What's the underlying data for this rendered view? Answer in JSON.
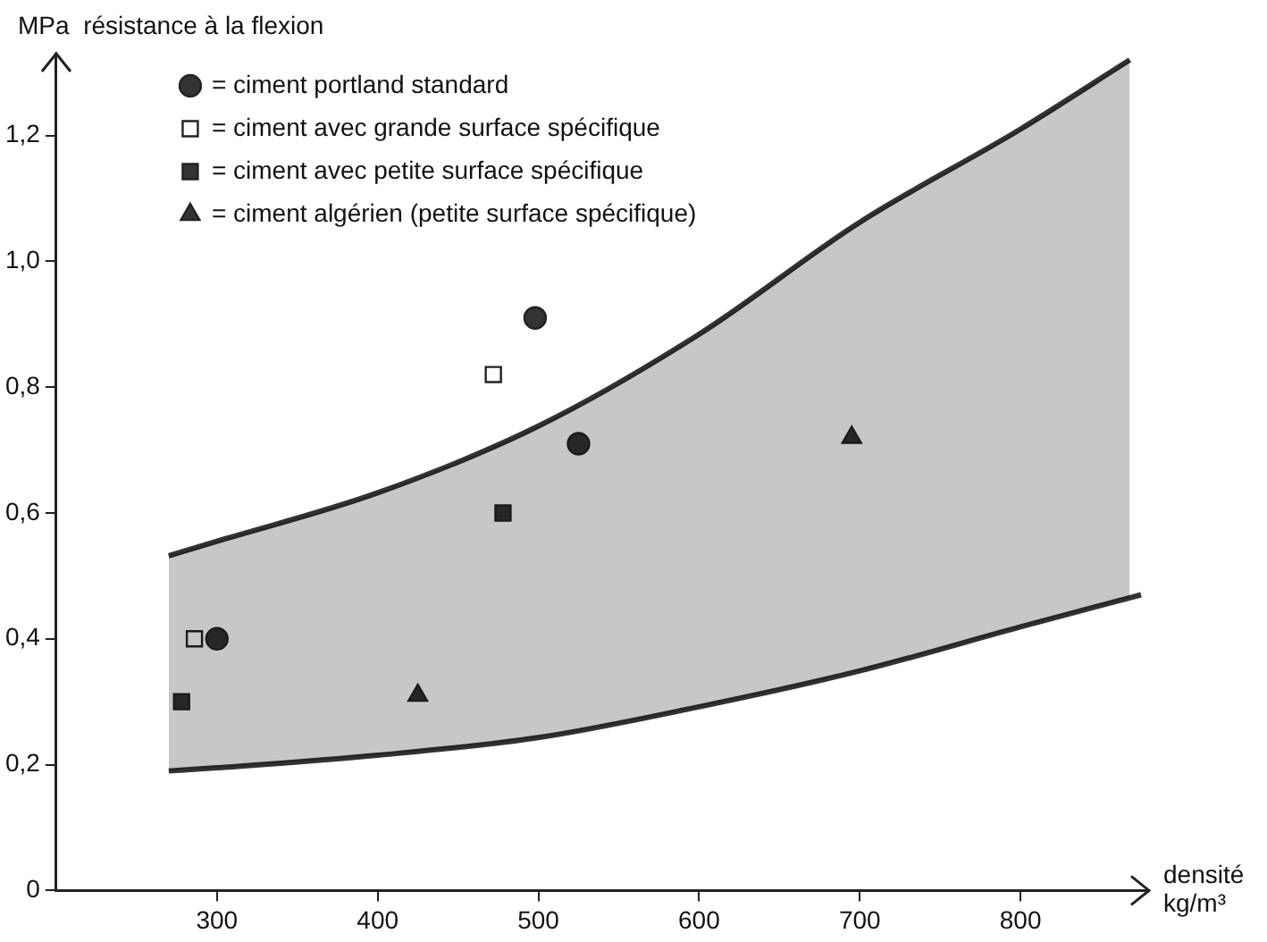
{
  "chart_data": {
    "type": "scatter",
    "ylabel": "MPa  résistance à la flexion",
    "xlabel": "densité\nkg/m³",
    "xlim": [
      200,
      880
    ],
    "ylim": [
      0,
      1.33
    ],
    "xticks": [
      300,
      400,
      500,
      600,
      700,
      800
    ],
    "yticks": [
      0,
      {
        "value": 0.2,
        "label": "0,2"
      },
      {
        "value": 0.4,
        "label": "0,4"
      },
      {
        "value": 0.6,
        "label": "0,6"
      },
      {
        "value": 0.8,
        "label": "0,8"
      },
      {
        "value": 1.0,
        "label": "1,0"
      },
      {
        "value": 1.2,
        "label": "1,2"
      }
    ],
    "grid": false,
    "legend": "top left",
    "series": [
      {
        "type": "line",
        "color": "#333333",
        "x": [
          270,
          300,
          400,
          500,
          600,
          700,
          800,
          868
        ],
        "values": [
          0.532,
          0.555,
          0.632,
          0.738,
          0.884,
          1.062,
          1.21,
          1.32
        ],
        "lower": [
          0.19,
          0.195,
          0.215,
          0.243,
          0.292,
          0.349,
          0.419,
          0.465
        ],
        "upper": [
          0.532,
          0.555,
          0.632,
          0.738,
          0.884,
          1.062,
          1.21,
          1.32
        ]
      },
      {
        "type": "line",
        "color": "#333333",
        "x": [
          270,
          300,
          400,
          500,
          600,
          700,
          800,
          875
        ],
        "values": [
          0.19,
          0.195,
          0.215,
          0.243,
          0.292,
          0.349,
          0.419,
          0.47
        ]
      },
      {
        "name": "= ciment portland standard",
        "marker": "circle",
        "color": "#333333",
        "x": [
          498,
          525,
          300
        ],
        "values": [
          0.91,
          0.71,
          0.4
        ]
      },
      {
        "name": "= ciment avec grande surface spécifique",
        "marker": "square",
        "color": "#ffffff",
        "x": [
          472,
          286
        ],
        "values": [
          0.82,
          0.4
        ]
      },
      {
        "name": "= ciment avec petite surface spécifique",
        "marker": "square",
        "color": "#333333",
        "x": [
          478,
          278
        ],
        "values": [
          0.6,
          0.3
        ]
      },
      {
        "name": "= ciment algérien (petite surface spécifique)",
        "marker": "triangle",
        "color": "#333333",
        "x": [
          425,
          695
        ],
        "values": [
          0.31,
          0.72
        ]
      }
    ]
  }
}
